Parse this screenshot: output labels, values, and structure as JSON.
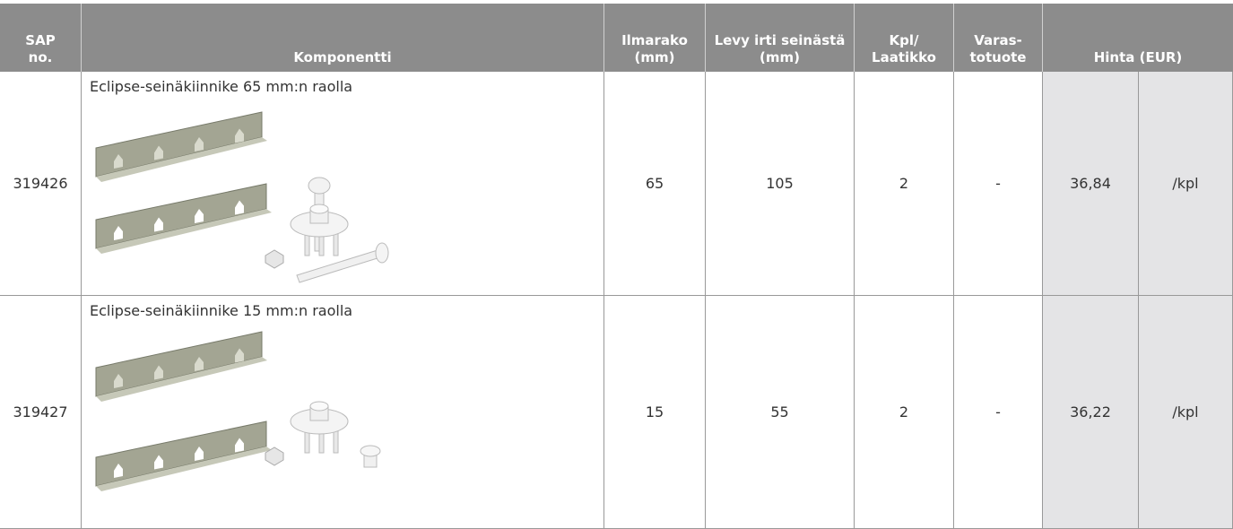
{
  "header": {
    "columns": [
      [
        "SAP",
        "no."
      ],
      [
        "Komponentti"
      ],
      [
        "Ilmarako",
        "(mm)"
      ],
      [
        "Levy irti seinästä",
        "(mm)"
      ],
      [
        "Kpl/",
        "Laatikko"
      ],
      [
        "Varas-",
        "totuote"
      ],
      [
        "Hinta (EUR)"
      ]
    ]
  },
  "rows": [
    {
      "sap": "319426",
      "component": "Eclipse-seinäkiinnike 65 mm:n raolla",
      "ilmarako": "65",
      "levy": "105",
      "kpl": "2",
      "varasto": "-",
      "price": "36,84",
      "unit": "/kpl"
    },
    {
      "sap": "319427",
      "component": "Eclipse-seinäkiinnike 15 mm:n raolla",
      "ilmarako": "15",
      "levy": "55",
      "kpl": "2",
      "varasto": "-",
      "price": "36,22",
      "unit": "/kpl"
    }
  ]
}
